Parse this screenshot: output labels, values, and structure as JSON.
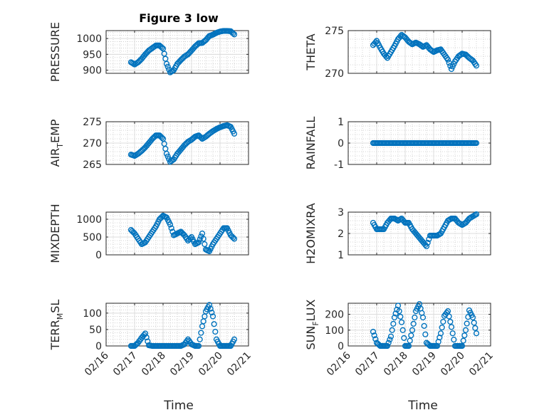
{
  "figure": {
    "title": "Figure 3 low",
    "marker_color": "#0072BD"
  },
  "chart_data": [
    {
      "type": "scatter",
      "ylabel": "PRESSURE",
      "ylim": [
        890,
        1025
      ],
      "yticks": [
        "900",
        "950",
        "1000"
      ],
      "ytick_values": [
        900,
        950,
        1000
      ],
      "xlim": [
        "02/16",
        "02/21"
      ],
      "grid": true,
      "x": [
        "02/16 21:00",
        "02/17 00:00",
        "02/17 03:00",
        "02/17 06:00",
        "02/17 09:00",
        "02/17 12:00",
        "02/17 15:00",
        "02/17 18:00",
        "02/17 21:00",
        "02/18 00:00",
        "02/18 03:00",
        "02/18 06:00",
        "02/18 09:00",
        "02/18 12:00",
        "02/18 15:00",
        "02/18 18:00",
        "02/18 21:00",
        "02/19 00:00",
        "02/19 03:00",
        "02/19 06:00",
        "02/19 09:00",
        "02/19 12:00",
        "02/19 15:00",
        "02/19 18:00",
        "02/19 21:00",
        "02/20 00:00",
        "02/20 03:00",
        "02/20 06:00",
        "02/20 09:00",
        "02/20 12:00"
      ],
      "y": [
        925,
        918,
        925,
        936,
        950,
        962,
        970,
        978,
        978,
        968,
        920,
        893,
        900,
        920,
        932,
        943,
        950,
        962,
        975,
        985,
        986,
        995,
        1008,
        1012,
        1018,
        1022,
        1024,
        1024,
        1023,
        1013
      ]
    },
    {
      "type": "scatter",
      "ylabel": "THETA",
      "ylim": [
        270,
        275
      ],
      "yticks": [
        "270",
        "275"
      ],
      "ytick_values": [
        270,
        275
      ],
      "xlim": [
        "02/16",
        "02/21"
      ],
      "grid": true,
      "x": [
        "02/16 21:00",
        "02/17 00:00",
        "02/17 03:00",
        "02/17 06:00",
        "02/17 09:00",
        "02/17 12:00",
        "02/17 15:00",
        "02/17 18:00",
        "02/17 21:00",
        "02/18 00:00",
        "02/18 03:00",
        "02/18 06:00",
        "02/18 09:00",
        "02/18 12:00",
        "02/18 15:00",
        "02/18 18:00",
        "02/18 21:00",
        "02/19 00:00",
        "02/19 03:00",
        "02/19 06:00",
        "02/19 09:00",
        "02/19 12:00",
        "02/19 15:00",
        "02/19 18:00",
        "02/19 21:00",
        "02/20 00:00",
        "02/20 03:00",
        "02/20 06:00",
        "02/20 09:00",
        "02/20 12:00"
      ],
      "y": [
        273.3,
        273.8,
        273.0,
        272.3,
        271.8,
        272.5,
        273.2,
        274.0,
        274.5,
        274.2,
        273.7,
        273.4,
        273.6,
        273.4,
        273.1,
        273.3,
        272.8,
        272.5,
        272.7,
        272.8,
        272.2,
        271.6,
        270.5,
        271.4,
        272.0,
        272.3,
        272.2,
        271.8,
        271.5,
        270.9
      ]
    },
    {
      "type": "scatter",
      "ylabel": "AIR_TEMP",
      "ylim": [
        265,
        275
      ],
      "yticks": [
        "265",
        "270",
        "275"
      ],
      "ytick_values": [
        265,
        270,
        275
      ],
      "xlim": [
        "02/16",
        "02/21"
      ],
      "grid": true,
      "x": [
        "02/16 21:00",
        "02/17 00:00",
        "02/17 03:00",
        "02/17 06:00",
        "02/17 09:00",
        "02/17 12:00",
        "02/17 15:00",
        "02/17 18:00",
        "02/17 21:00",
        "02/18 00:00",
        "02/18 03:00",
        "02/18 06:00",
        "02/18 09:00",
        "02/18 12:00",
        "02/18 15:00",
        "02/18 18:00",
        "02/18 21:00",
        "02/19 00:00",
        "02/19 03:00",
        "02/19 06:00",
        "02/19 09:00",
        "02/19 12:00",
        "02/19 15:00",
        "02/19 18:00",
        "02/19 21:00",
        "02/20 00:00",
        "02/20 03:00",
        "02/20 06:00",
        "02/20 09:00",
        "02/20 12:00"
      ],
      "y": [
        267.3,
        267.0,
        267.5,
        268.2,
        269.0,
        270.0,
        271.0,
        271.8,
        271.8,
        271.0,
        267.5,
        265.6,
        266.2,
        267.5,
        268.5,
        269.5,
        270.3,
        270.8,
        271.5,
        271.8,
        271.0,
        271.5,
        272.2,
        272.8,
        273.3,
        273.7,
        274.0,
        274.2,
        273.8,
        272.2
      ]
    },
    {
      "type": "scatter",
      "ylabel": "RAINFALL",
      "ylim": [
        -1,
        1
      ],
      "yticks": [
        "-1",
        "0",
        "1"
      ],
      "ytick_values": [
        -1,
        0,
        1
      ],
      "xlim": [
        "02/16",
        "02/21"
      ],
      "grid": true,
      "x": [
        "02/16 21:00",
        "02/17 00:00",
        "02/17 03:00",
        "02/17 06:00",
        "02/17 09:00",
        "02/17 12:00",
        "02/17 15:00",
        "02/17 18:00",
        "02/17 21:00",
        "02/18 00:00",
        "02/18 03:00",
        "02/18 06:00",
        "02/18 09:00",
        "02/18 12:00",
        "02/18 15:00",
        "02/18 18:00",
        "02/18 21:00",
        "02/19 00:00",
        "02/19 03:00",
        "02/19 06:00",
        "02/19 09:00",
        "02/19 12:00",
        "02/19 15:00",
        "02/19 18:00",
        "02/19 21:00",
        "02/20 00:00",
        "02/20 03:00",
        "02/20 06:00",
        "02/20 09:00",
        "02/20 12:00"
      ],
      "y": [
        0,
        0,
        0,
        0,
        0,
        0,
        0,
        0,
        0,
        0,
        0,
        0,
        0,
        0,
        0,
        0,
        0,
        0,
        0,
        0,
        0,
        0,
        0,
        0,
        0,
        0,
        0,
        0,
        0,
        0
      ]
    },
    {
      "type": "scatter",
      "ylabel": "MIXDEPTH",
      "ylim": [
        0,
        1200
      ],
      "yticks": [
        "0",
        "500",
        "1000"
      ],
      "ytick_values": [
        0,
        500,
        1000
      ],
      "xlim": [
        "02/16",
        "02/21"
      ],
      "grid": true,
      "x": [
        "02/16 21:00",
        "02/17 00:00",
        "02/17 03:00",
        "02/17 06:00",
        "02/17 09:00",
        "02/17 12:00",
        "02/17 15:00",
        "02/17 18:00",
        "02/17 21:00",
        "02/18 00:00",
        "02/18 03:00",
        "02/18 06:00",
        "02/18 09:00",
        "02/18 12:00",
        "02/18 15:00",
        "02/18 18:00",
        "02/18 21:00",
        "02/19 00:00",
        "02/19 03:00",
        "02/19 06:00",
        "02/19 09:00",
        "02/19 12:00",
        "02/19 15:00",
        "02/19 18:00",
        "02/19 21:00",
        "02/20 00:00",
        "02/20 03:00",
        "02/20 06:00",
        "02/20 09:00",
        "02/20 12:00"
      ],
      "y": [
        700,
        600,
        450,
        300,
        350,
        500,
        650,
        800,
        1000,
        1100,
        1050,
        850,
        550,
        600,
        650,
        550,
        400,
        500,
        300,
        350,
        600,
        150,
        100,
        300,
        450,
        600,
        750,
        750,
        550,
        450
      ]
    },
    {
      "type": "scatter",
      "ylabel": "H2OMIXRA",
      "ylim": [
        1,
        3
      ],
      "yticks": [
        "1",
        "2",
        "3"
      ],
      "ytick_values": [
        1,
        2,
        3
      ],
      "xlim": [
        "02/16",
        "02/21"
      ],
      "grid": true,
      "x": [
        "02/16 21:00",
        "02/17 00:00",
        "02/17 03:00",
        "02/17 06:00",
        "02/17 09:00",
        "02/17 12:00",
        "02/17 15:00",
        "02/17 18:00",
        "02/17 21:00",
        "02/18 00:00",
        "02/18 03:00",
        "02/18 06:00",
        "02/18 09:00",
        "02/18 12:00",
        "02/18 15:00",
        "02/18 18:00",
        "02/18 21:00",
        "02/19 00:00",
        "02/19 03:00",
        "02/19 06:00",
        "02/19 09:00",
        "02/19 12:00",
        "02/19 15:00",
        "02/19 18:00",
        "02/19 21:00",
        "02/20 00:00",
        "02/20 03:00",
        "02/20 06:00",
        "02/20 09:00",
        "02/20 12:00"
      ],
      "y": [
        2.5,
        2.2,
        2.2,
        2.2,
        2.5,
        2.7,
        2.7,
        2.6,
        2.7,
        2.5,
        2.5,
        2.2,
        2.0,
        1.8,
        1.6,
        1.4,
        1.9,
        1.9,
        1.9,
        2.0,
        2.3,
        2.6,
        2.7,
        2.7,
        2.5,
        2.4,
        2.5,
        2.7,
        2.8,
        2.9
      ]
    },
    {
      "type": "scatter",
      "ylabel": "TERR_MSL",
      "ylim": [
        0,
        130
      ],
      "yticks": [
        "0",
        "50",
        "100"
      ],
      "ytick_values": [
        0,
        50,
        100
      ],
      "xlim": [
        "02/16",
        "02/21"
      ],
      "grid": true,
      "x": [
        "02/16 21:00",
        "02/17 00:00",
        "02/17 03:00",
        "02/17 06:00",
        "02/17 09:00",
        "02/17 12:00",
        "02/17 15:00",
        "02/17 18:00",
        "02/17 21:00",
        "02/18 00:00",
        "02/18 03:00",
        "02/18 06:00",
        "02/18 09:00",
        "02/18 12:00",
        "02/18 15:00",
        "02/18 18:00",
        "02/18 21:00",
        "02/19 00:00",
        "02/19 03:00",
        "02/19 06:00",
        "02/19 09:00",
        "02/19 12:00",
        "02/19 15:00",
        "02/19 18:00",
        "02/19 21:00",
        "02/20 00:00",
        "02/20 03:00",
        "02/20 06:00",
        "02/20 09:00",
        "02/20 12:00"
      ],
      "y": [
        0,
        0,
        10,
        25,
        38,
        2,
        0,
        0,
        0,
        0,
        0,
        0,
        0,
        0,
        0,
        5,
        20,
        5,
        0,
        0,
        60,
        105,
        125,
        90,
        20,
        0,
        0,
        0,
        0,
        20
      ]
    },
    {
      "type": "scatter",
      "ylabel": "SUN_FLUX",
      "ylim": [
        0,
        270
      ],
      "yticks": [
        "0",
        "100",
        "200"
      ],
      "ytick_values": [
        0,
        100,
        200
      ],
      "xlim": [
        "02/16",
        "02/21"
      ],
      "grid": true,
      "x": [
        "02/16 21:00",
        "02/17 00:00",
        "02/17 03:00",
        "02/17 06:00",
        "02/17 09:00",
        "02/17 12:00",
        "02/17 15:00",
        "02/17 18:00",
        "02/17 21:00",
        "02/18 00:00",
        "02/18 03:00",
        "02/18 06:00",
        "02/18 09:00",
        "02/18 12:00",
        "02/18 15:00",
        "02/18 18:00",
        "02/18 21:00",
        "02/19 00:00",
        "02/19 03:00",
        "02/19 06:00",
        "02/19 09:00",
        "02/19 12:00",
        "02/19 15:00",
        "02/19 18:00",
        "02/19 21:00",
        "02/20 00:00",
        "02/20 03:00",
        "02/20 06:00",
        "02/20 09:00",
        "02/20 12:00"
      ],
      "y": [
        90,
        20,
        0,
        0,
        0,
        60,
        180,
        255,
        150,
        0,
        0,
        100,
        220,
        265,
        180,
        20,
        0,
        0,
        0,
        80,
        190,
        220,
        120,
        0,
        0,
        0,
        100,
        225,
        180,
        80
      ]
    }
  ],
  "xaxis": {
    "label": "Time",
    "ticks": [
      "02/16",
      "02/17",
      "02/18",
      "02/19",
      "02/20",
      "02/21"
    ]
  }
}
